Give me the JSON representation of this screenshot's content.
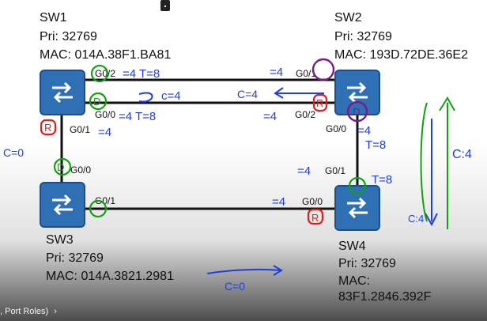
{
  "switches": {
    "sw1": {
      "name": "SW1",
      "pri": "Pri: 32769",
      "mac": "MAC: 014A.38F1.BA81"
    },
    "sw2": {
      "name": "SW2",
      "pri": "Pri: 32769",
      "mac": "MAC: 193D.72DE.36E2"
    },
    "sw3": {
      "name": "SW3",
      "pri": "Pri: 32769",
      "mac": "MAC: 014A.3821.2981"
    },
    "sw4": {
      "name": "SW4",
      "pri": "Pri: 32769",
      "mac_label": "MAC:",
      "mac_value": "83F1.2846.392F"
    }
  },
  "ports": {
    "sw1_g02": "G0/2",
    "sw1_g00": "G0/0",
    "sw1_g01": "G0/1",
    "sw2_g01": "G0/1",
    "sw2_g02": "G0/2",
    "sw2_g00": "G0/0",
    "sw3_g00": "G0/0",
    "sw3_g01": "G0/1",
    "sw4_g01": "G0/1",
    "sw4_g00": "G0/0"
  },
  "annotations": {
    "sw1_g02_cost": "=4 T=8",
    "sw1_g00_cost": "=4 T=8",
    "sw1_g00_loop": "c=4",
    "sw1_g01_cost": "=4",
    "sw1_left": "C=0",
    "sw2_g01_cost": "=4",
    "sw2_arrow": "C=4",
    "sw2_g02_cost": "=4",
    "sw2_g00_cost": "=4",
    "sw2_g00_total": "T=8",
    "sw4_g01_cost": "=4",
    "sw4_g01_total": "T=8",
    "sw4_g00_cost": "=4",
    "bottom_arrow": "C=0",
    "right_c4": "C:4",
    "right_c4_lower": "C:4",
    "port_R": "R",
    "port_D": "D"
  },
  "video": {
    "chapter_label": ", Port Roles)",
    "chapter_chevron": "›",
    "progress_color": "#e62117"
  },
  "colors": {
    "switch_fill": "#2f6fb3",
    "ink_green": "#13a113",
    "ink_blue": "#1f3ee0",
    "ink_red": "#e11d1d",
    "ink_purple": "#7a1a8a"
  }
}
